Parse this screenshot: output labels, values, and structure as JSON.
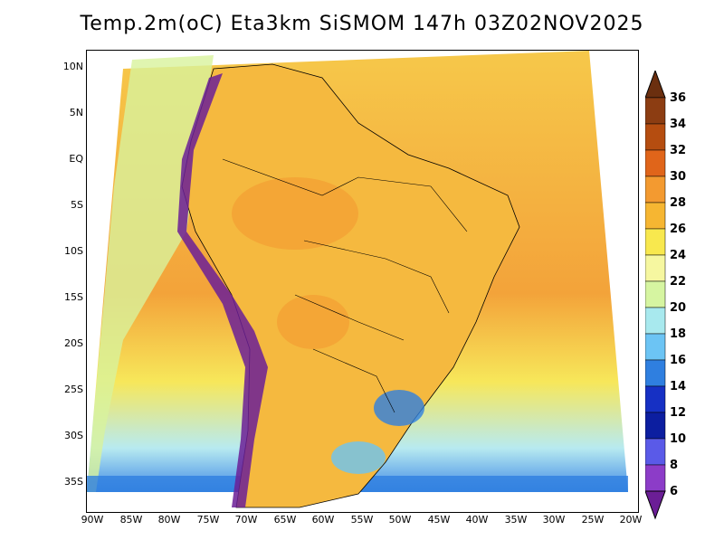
{
  "title": "Temp.2m(oC) Eta3km SiSMOM 147h 03Z02NOV2025",
  "lat_labels": [
    "10N",
    "5N",
    "EQ",
    "5S",
    "10S",
    "15S",
    "20S",
    "25S",
    "30S",
    "35S"
  ],
  "lon_labels": [
    "90W",
    "85W",
    "80W",
    "75W",
    "70W",
    "65W",
    "60W",
    "55W",
    "50W",
    "45W",
    "40W",
    "35W",
    "30W",
    "25W",
    "20W"
  ],
  "colorbar": {
    "labels": [
      "36",
      "34",
      "32",
      "30",
      "28",
      "26",
      "24",
      "22",
      "20",
      "18",
      "16",
      "14",
      "12",
      "10",
      "8",
      "6"
    ],
    "colors": [
      "#6b2f0f",
      "#8c3d12",
      "#b54d10",
      "#e0651a",
      "#f39a30",
      "#f6b632",
      "#f8e84e",
      "#f6f7a0",
      "#d6f5a1",
      "#a8e9ee",
      "#6cc4f4",
      "#2f7fe0",
      "#1630c4",
      "#0c1ea0",
      "#5a5ae8",
      "#8c3cc8",
      "#6b1e96"
    ]
  },
  "legend_range": {
    "min": 6,
    "max": 36,
    "unit": "oC"
  }
}
